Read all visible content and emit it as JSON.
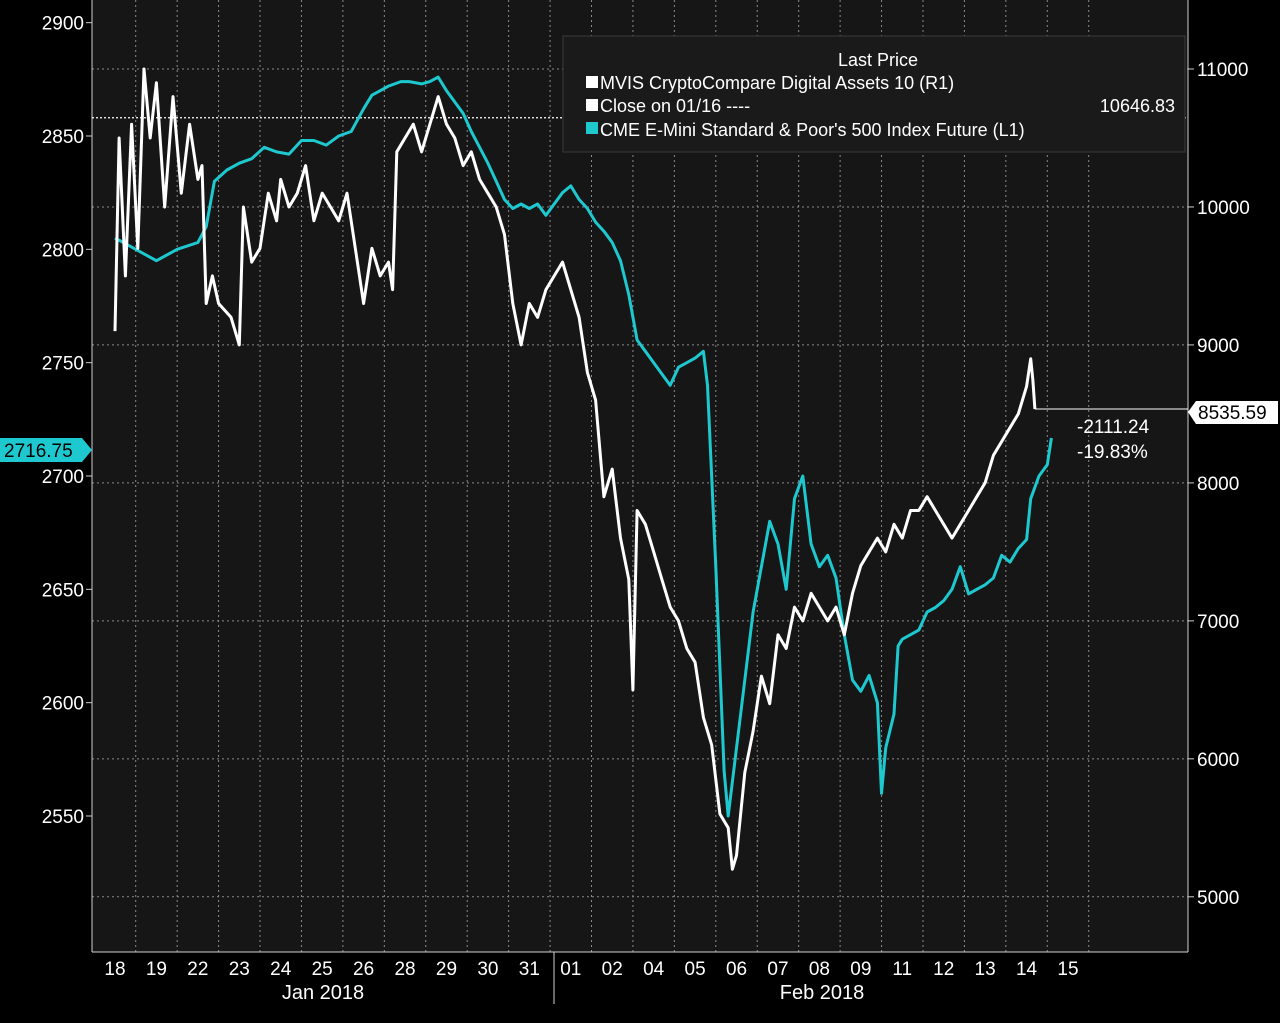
{
  "chart_data": {
    "type": "line",
    "title": "",
    "legend": {
      "title": "Last Price",
      "position": "top-right",
      "entries": [
        {
          "label": "MVIS CryptoCompare Digital Assets 10  (R1)",
          "color": "#ffffff"
        },
        {
          "label": "Close on 01/16 ----",
          "value": "10646.83",
          "color": "#ffffff"
        },
        {
          "label": "CME E-Mini Standard & Poor's 500 Index Future  (L1)",
          "color": "#1ec8cf"
        }
      ]
    },
    "left_axis": {
      "ticks": [
        "2900",
        "2850",
        "2800",
        "2750",
        "2700",
        "2650",
        "2600",
        "2550"
      ],
      "min": 2490,
      "max": 2910,
      "last_value_label": "2716.75"
    },
    "right_axis": {
      "ticks": [
        "11000",
        "10000",
        "9000",
        "8000",
        "7000",
        "6000",
        "5000"
      ],
      "min": 4600,
      "max": 11500,
      "last_value_label": "8535.59"
    },
    "x_ticks": [
      "18",
      "19",
      "22",
      "23",
      "24",
      "25",
      "26",
      "28",
      "29",
      "30",
      "31",
      "01",
      "02",
      "04",
      "05",
      "06",
      "07",
      "08",
      "09",
      "11",
      "12",
      "13",
      "14",
      "15"
    ],
    "months": [
      "Jan 2018",
      "Feb 2018"
    ],
    "annotations": {
      "change_abs": "-2111.24",
      "change_pct": "-19.83%"
    },
    "reference_close": 10646.83,
    "series": [
      {
        "name": "MVIS CryptoCompare Digital Assets 10  (R1)",
        "axis": "right",
        "color": "#ffffff",
        "points": [
          [
            0,
            9100
          ],
          [
            0.1,
            10500
          ],
          [
            0.25,
            9500
          ],
          [
            0.4,
            10600
          ],
          [
            0.55,
            9700
          ],
          [
            0.7,
            11000
          ],
          [
            0.85,
            10500
          ],
          [
            1.0,
            10900
          ],
          [
            1.2,
            10000
          ],
          [
            1.4,
            10800
          ],
          [
            1.6,
            10100
          ],
          [
            1.8,
            10600
          ],
          [
            2.0,
            10200
          ],
          [
            2.1,
            10300
          ],
          [
            2.2,
            9300
          ],
          [
            2.35,
            9500
          ],
          [
            2.5,
            9300
          ],
          [
            2.8,
            9200
          ],
          [
            3.0,
            9000
          ],
          [
            3.1,
            10000
          ],
          [
            3.3,
            9600
          ],
          [
            3.5,
            9700
          ],
          [
            3.7,
            10100
          ],
          [
            3.9,
            9900
          ],
          [
            4.0,
            10200
          ],
          [
            4.2,
            10000
          ],
          [
            4.4,
            10100
          ],
          [
            4.6,
            10300
          ],
          [
            4.8,
            9900
          ],
          [
            5.0,
            10100
          ],
          [
            5.2,
            10000
          ],
          [
            5.4,
            9900
          ],
          [
            5.6,
            10100
          ],
          [
            5.8,
            9700
          ],
          [
            6.0,
            9300
          ],
          [
            6.2,
            9700
          ],
          [
            6.4,
            9500
          ],
          [
            6.6,
            9600
          ],
          [
            6.7,
            9400
          ],
          [
            6.8,
            10400
          ],
          [
            7.0,
            10500
          ],
          [
            7.2,
            10600
          ],
          [
            7.4,
            10400
          ],
          [
            7.6,
            10600
          ],
          [
            7.8,
            10800
          ],
          [
            8.0,
            10600
          ],
          [
            8.2,
            10500
          ],
          [
            8.4,
            10300
          ],
          [
            8.6,
            10400
          ],
          [
            8.8,
            10200
          ],
          [
            9.0,
            10100
          ],
          [
            9.2,
            10000
          ],
          [
            9.4,
            9800
          ],
          [
            9.6,
            9300
          ],
          [
            9.8,
            9000
          ],
          [
            10.0,
            9300
          ],
          [
            10.2,
            9200
          ],
          [
            10.4,
            9400
          ],
          [
            10.6,
            9500
          ],
          [
            10.8,
            9600
          ],
          [
            11.0,
            9400
          ],
          [
            11.2,
            9200
          ],
          [
            11.4,
            8800
          ],
          [
            11.6,
            8600
          ],
          [
            11.8,
            7900
          ],
          [
            12.0,
            8100
          ],
          [
            12.2,
            7600
          ],
          [
            12.4,
            7300
          ],
          [
            12.5,
            6500
          ],
          [
            12.6,
            7800
          ],
          [
            12.8,
            7700
          ],
          [
            13.0,
            7500
          ],
          [
            13.2,
            7300
          ],
          [
            13.4,
            7100
          ],
          [
            13.6,
            7000
          ],
          [
            13.8,
            6800
          ],
          [
            14.0,
            6700
          ],
          [
            14.2,
            6300
          ],
          [
            14.4,
            6100
          ],
          [
            14.6,
            5600
          ],
          [
            14.8,
            5500
          ],
          [
            14.9,
            5200
          ],
          [
            15.0,
            5300
          ],
          [
            15.2,
            5900
          ],
          [
            15.4,
            6200
          ],
          [
            15.6,
            6600
          ],
          [
            15.8,
            6400
          ],
          [
            16.0,
            6900
          ],
          [
            16.2,
            6800
          ],
          [
            16.4,
            7100
          ],
          [
            16.6,
            7000
          ],
          [
            16.8,
            7200
          ],
          [
            17.0,
            7100
          ],
          [
            17.2,
            7000
          ],
          [
            17.4,
            7100
          ],
          [
            17.6,
            6900
          ],
          [
            17.8,
            7200
          ],
          [
            18.0,
            7400
          ],
          [
            18.2,
            7500
          ],
          [
            18.4,
            7600
          ],
          [
            18.6,
            7500
          ],
          [
            18.8,
            7700
          ],
          [
            19.0,
            7600
          ],
          [
            19.2,
            7800
          ],
          [
            19.4,
            7800
          ],
          [
            19.6,
            7900
          ],
          [
            19.8,
            7800
          ],
          [
            20.0,
            7700
          ],
          [
            20.2,
            7600
          ],
          [
            20.4,
            7700
          ],
          [
            20.6,
            7800
          ],
          [
            20.8,
            7900
          ],
          [
            21.0,
            8000
          ],
          [
            21.2,
            8200
          ],
          [
            21.4,
            8300
          ],
          [
            21.6,
            8400
          ],
          [
            21.8,
            8500
          ],
          [
            22.0,
            8700
          ],
          [
            22.1,
            8900
          ],
          [
            22.15,
            8750
          ],
          [
            22.2,
            8535.59
          ]
        ]
      },
      {
        "name": "CME E-Mini Standard & Poor's 500 Index Future  (L1)",
        "axis": "left",
        "color": "#1ec8cf",
        "points": [
          [
            0,
            2805
          ],
          [
            0.5,
            2800
          ],
          [
            1.0,
            2795
          ],
          [
            1.5,
            2800
          ],
          [
            2.0,
            2803
          ],
          [
            2.2,
            2810
          ],
          [
            2.4,
            2830
          ],
          [
            2.7,
            2835
          ],
          [
            3.0,
            2838
          ],
          [
            3.3,
            2840
          ],
          [
            3.6,
            2845
          ],
          [
            3.9,
            2843
          ],
          [
            4.2,
            2842
          ],
          [
            4.5,
            2848
          ],
          [
            4.8,
            2848
          ],
          [
            5.1,
            2846
          ],
          [
            5.4,
            2850
          ],
          [
            5.7,
            2852
          ],
          [
            6.0,
            2862
          ],
          [
            6.2,
            2868
          ],
          [
            6.4,
            2870
          ],
          [
            6.6,
            2872
          ],
          [
            6.9,
            2874
          ],
          [
            7.1,
            2874
          ],
          [
            7.4,
            2873
          ],
          [
            7.6,
            2874
          ],
          [
            7.8,
            2876
          ],
          [
            8.0,
            2870
          ],
          [
            8.2,
            2865
          ],
          [
            8.4,
            2860
          ],
          [
            8.6,
            2852
          ],
          [
            8.8,
            2845
          ],
          [
            9.0,
            2838
          ],
          [
            9.2,
            2830
          ],
          [
            9.4,
            2822
          ],
          [
            9.6,
            2818
          ],
          [
            9.8,
            2820
          ],
          [
            10.0,
            2818
          ],
          [
            10.2,
            2820
          ],
          [
            10.4,
            2815
          ],
          [
            10.6,
            2820
          ],
          [
            10.8,
            2825
          ],
          [
            11.0,
            2828
          ],
          [
            11.2,
            2822
          ],
          [
            11.4,
            2818
          ],
          [
            11.6,
            2812
          ],
          [
            11.8,
            2808
          ],
          [
            12.0,
            2803
          ],
          [
            12.2,
            2795
          ],
          [
            12.4,
            2780
          ],
          [
            12.6,
            2760
          ],
          [
            12.8,
            2755
          ],
          [
            13.0,
            2750
          ],
          [
            13.2,
            2745
          ],
          [
            13.4,
            2740
          ],
          [
            13.6,
            2748
          ],
          [
            13.8,
            2750
          ],
          [
            14.0,
            2752
          ],
          [
            14.2,
            2755
          ],
          [
            14.3,
            2740
          ],
          [
            14.5,
            2660
          ],
          [
            14.7,
            2570
          ],
          [
            14.8,
            2550
          ],
          [
            15.0,
            2580
          ],
          [
            15.2,
            2610
          ],
          [
            15.4,
            2640
          ],
          [
            15.6,
            2660
          ],
          [
            15.8,
            2680
          ],
          [
            16.0,
            2670
          ],
          [
            16.2,
            2650
          ],
          [
            16.4,
            2690
          ],
          [
            16.6,
            2700
          ],
          [
            16.8,
            2670
          ],
          [
            17.0,
            2660
          ],
          [
            17.2,
            2665
          ],
          [
            17.4,
            2655
          ],
          [
            17.6,
            2630
          ],
          [
            17.8,
            2610
          ],
          [
            18.0,
            2605
          ],
          [
            18.2,
            2612
          ],
          [
            18.4,
            2600
          ],
          [
            18.5,
            2560
          ],
          [
            18.6,
            2580
          ],
          [
            18.8,
            2595
          ],
          [
            18.9,
            2625
          ],
          [
            19.0,
            2628
          ],
          [
            19.2,
            2630
          ],
          [
            19.4,
            2632
          ],
          [
            19.6,
            2640
          ],
          [
            19.8,
            2642
          ],
          [
            20.0,
            2645
          ],
          [
            20.2,
            2650
          ],
          [
            20.4,
            2660
          ],
          [
            20.6,
            2648
          ],
          [
            20.8,
            2650
          ],
          [
            21.0,
            2652
          ],
          [
            21.2,
            2655
          ],
          [
            21.4,
            2665
          ],
          [
            21.6,
            2662
          ],
          [
            21.8,
            2668
          ],
          [
            22.0,
            2672
          ],
          [
            22.1,
            2690
          ],
          [
            22.3,
            2700
          ],
          [
            22.5,
            2705
          ],
          [
            22.6,
            2716.75
          ]
        ]
      }
    ]
  }
}
